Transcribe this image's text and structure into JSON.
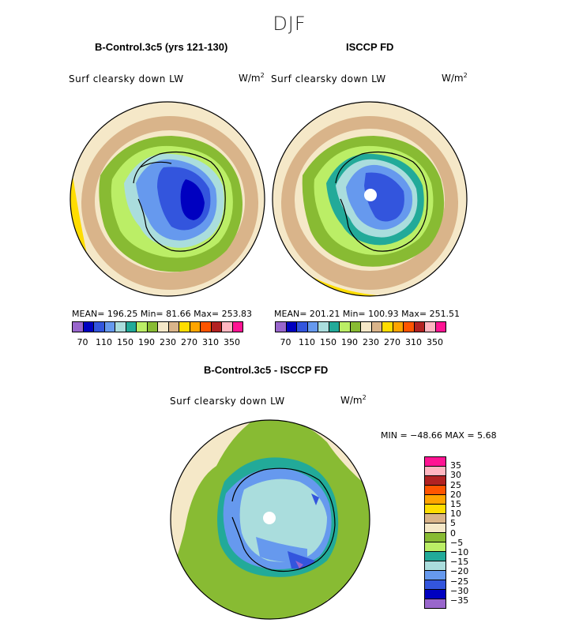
{
  "figure_title": "DJF",
  "panels": {
    "left": {
      "title": "B-Control.3c5 (yrs 121-130)",
      "variable": "Surf clearsky down LW",
      "unit_base": "W/m",
      "unit_exp": "2",
      "stats": "MEAN= 196.25   Min=  81.66   Max= 253.83",
      "colorbar_labels": [
        "70",
        "110",
        "150",
        "190",
        "230",
        "270",
        "310",
        "350"
      ]
    },
    "right": {
      "title": "ISCCP FD",
      "variable": "Surf clearsky down LW",
      "unit_base": "W/m",
      "unit_exp": "2",
      "stats": "MEAN= 201.21   Min= 100.93   Max= 251.51",
      "colorbar_labels": [
        "70",
        "110",
        "150",
        "190",
        "230",
        "270",
        "310",
        "350"
      ]
    },
    "diff": {
      "title": "B-Control.3c5 - ISCCP FD",
      "variable": "Surf clearsky down LW",
      "unit_base": "W/m",
      "unit_exp": "2",
      "minmax": "MIN = −48.66 MAX =    5.68",
      "colorbar_labels": [
        "35",
        "30",
        "25",
        "20",
        "15",
        "10",
        "5",
        "0",
        "−5",
        "−10",
        "−15",
        "−20",
        "−25",
        "−30",
        "−35"
      ]
    }
  },
  "chart_data": [
    {
      "type": "heatmap",
      "projection": "south polar stereographic",
      "title": "B-Control.3c5 (yrs 121-130)",
      "variable": "Surf clearsky down LW",
      "units": "W/m^2",
      "mean": 196.25,
      "min": 81.66,
      "max": 253.83,
      "contour_levels": [
        70,
        90,
        110,
        130,
        150,
        170,
        190,
        210,
        230,
        250,
        270,
        290,
        310,
        330,
        350
      ],
      "colors": [
        "#9966cc",
        "#0000c0",
        "#3355dd",
        "#6699ee",
        "#aadddd",
        "#22aa99",
        "#bbee66",
        "#88bb33",
        "#f5e8c8",
        "#d9b48a",
        "#ffdd00",
        "#ffa500",
        "#ff5500",
        "#b22222",
        "#ffb6c1",
        "#ff1493"
      ]
    },
    {
      "type": "heatmap",
      "projection": "south polar stereographic",
      "title": "ISCCP FD",
      "variable": "Surf clearsky down LW",
      "units": "W/m^2",
      "mean": 201.21,
      "min": 100.93,
      "max": 251.51,
      "contour_levels": [
        70,
        90,
        110,
        130,
        150,
        170,
        190,
        210,
        230,
        250,
        270,
        290,
        310,
        330,
        350
      ],
      "colors": [
        "#9966cc",
        "#0000c0",
        "#3355dd",
        "#6699ee",
        "#aadddd",
        "#22aa99",
        "#bbee66",
        "#88bb33",
        "#f5e8c8",
        "#d9b48a",
        "#ffdd00",
        "#ffa500",
        "#ff5500",
        "#b22222",
        "#ffb6c1",
        "#ff1493"
      ]
    },
    {
      "type": "heatmap",
      "projection": "south polar stereographic",
      "title": "B-Control.3c5 - ISCCP FD",
      "variable": "Surf clearsky down LW",
      "units": "W/m^2",
      "min": -48.66,
      "max": 5.68,
      "contour_levels": [
        35,
        30,
        25,
        20,
        15,
        10,
        5,
        0,
        -5,
        -10,
        -15,
        -20,
        -25,
        -30,
        -35
      ],
      "colors": [
        "#ff1493",
        "#ffb6c1",
        "#b22222",
        "#ff5500",
        "#ffa500",
        "#ffdd00",
        "#d9b48a",
        "#f5e8c8",
        "#88bb33",
        "#bbee66",
        "#22aa99",
        "#aadddd",
        "#6699ee",
        "#3355dd",
        "#0000c0",
        "#9966cc"
      ]
    }
  ]
}
